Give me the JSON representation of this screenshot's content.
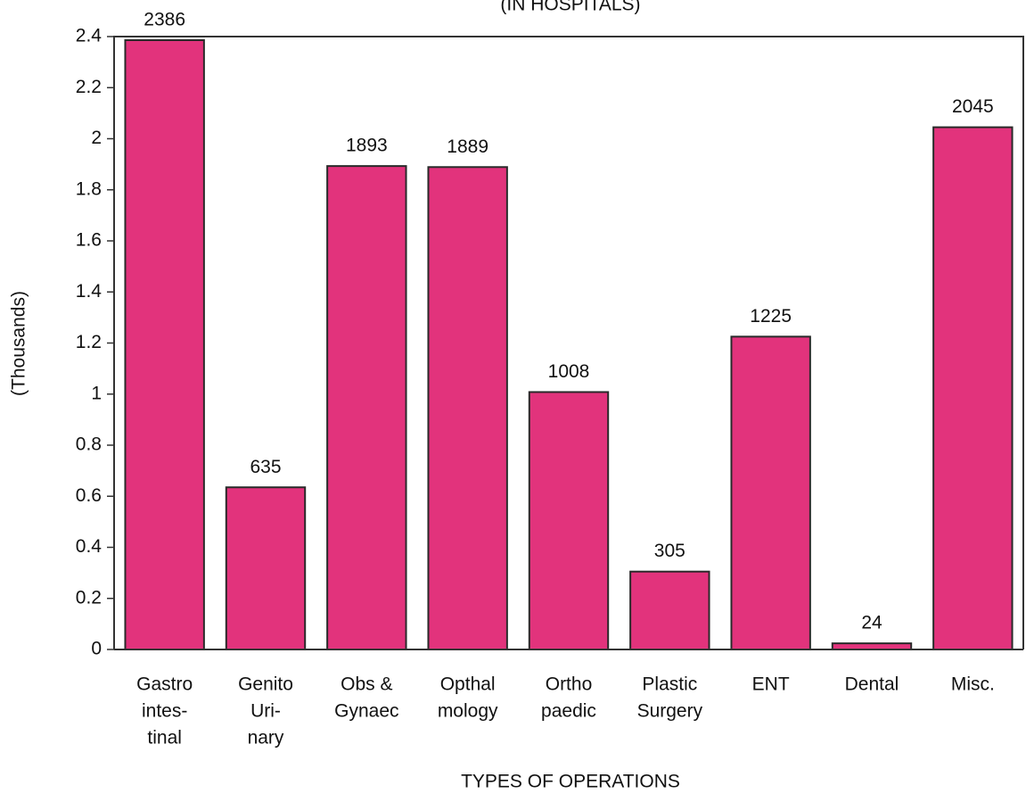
{
  "chart_data": {
    "type": "bar",
    "subtitle": "(IN HOSPITALS)",
    "categories": [
      [
        "Gastro",
        "intes-",
        "tinal"
      ],
      [
        "Genito",
        "Uri-",
        "nary"
      ],
      [
        "Obs &",
        "Gynaec"
      ],
      [
        "Opthal",
        "mology"
      ],
      [
        "Ortho",
        "paedic"
      ],
      [
        "Plastic",
        "Surgery"
      ],
      [
        "ENT"
      ],
      [
        "Dental"
      ],
      [
        "Misc."
      ]
    ],
    "values": [
      2.386,
      0.635,
      1.893,
      1.889,
      1.008,
      0.305,
      1.225,
      0.024,
      2.045
    ],
    "value_labels": [
      "2386",
      "635",
      "1893",
      "1889",
      "1008",
      "305",
      "1225",
      "24",
      "2045"
    ],
    "color": "#e2337c",
    "x_label": "TYPES OF OPERATIONS",
    "y_label": "(Thousands)",
    "ylim": [
      0,
      2.4
    ],
    "yticks": [
      0,
      0.2,
      0.4,
      0.6,
      0.8,
      1,
      1.2,
      1.4,
      1.6,
      1.8,
      2,
      2.2,
      2.4
    ],
    "grid": false
  }
}
